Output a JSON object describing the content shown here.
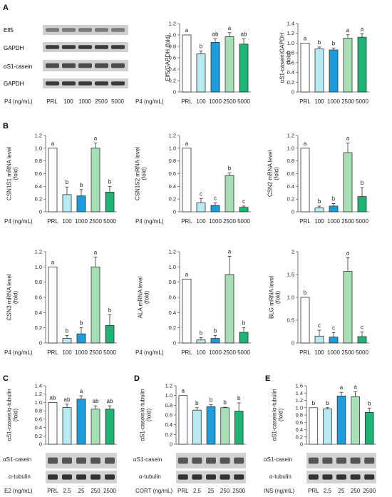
{
  "panel_labels": [
    "A",
    "B",
    "C",
    "D",
    "E"
  ],
  "colors": {
    "white": "#ffffff",
    "light_cyan": "#b8eaf2",
    "blue": "#1c9bdd",
    "light_green": "#a7dfb7",
    "green": "#1db574"
  },
  "blot_A": {
    "labels": [
      "Elf5",
      "GAPDH",
      "αS1-casein",
      "GAPDH"
    ]
  },
  "chart_data": [
    {
      "id": "A-elf5",
      "type": "bar",
      "ylabel": "Elf5/GAPDH (fold)",
      "xlabel": "P4 (ng/mL)",
      "categories": [
        "PRL",
        "100",
        "1000",
        "2500",
        "5000"
      ],
      "values": [
        1.0,
        0.67,
        0.87,
        0.97,
        0.84
      ],
      "errors": [
        0,
        0.05,
        0.06,
        0.07,
        0.09
      ],
      "letters": [
        "a",
        "b",
        "ab",
        "a",
        "ab"
      ],
      "ylim": [
        0,
        1.2
      ],
      "ticks": [
        "0",
        "0.2",
        "0.4",
        "0.6",
        "0.8",
        "1.0",
        "1.2"
      ]
    },
    {
      "id": "A-casein",
      "type": "bar",
      "ylabel": "αS1-casein/GAPDH (fold)",
      "xlabel": "",
      "categories": [
        "PRL",
        "100",
        "1000",
        "2500",
        "5000"
      ],
      "values": [
        1.0,
        0.88,
        0.86,
        1.1,
        1.12
      ],
      "errors": [
        0,
        0.04,
        0.04,
        0.07,
        0.07
      ],
      "letters": [
        "a",
        "b",
        "b",
        "a",
        "a"
      ],
      "ylim": [
        0,
        1.4
      ],
      "ticks": [
        "0",
        "0.2",
        "0.4",
        "0.6",
        "0.8",
        "1.0",
        "1.2",
        "1.4"
      ]
    },
    {
      "id": "B-csn1s1",
      "type": "bar",
      "ylabel": "CSN1S1 mRNA level (fold)",
      "xlabel": "P4 (ng/mL)",
      "categories": [
        "PRL",
        "100",
        "1000",
        "2500",
        "5000"
      ],
      "values": [
        1.0,
        0.27,
        0.25,
        1.0,
        0.31
      ],
      "errors": [
        0,
        0.12,
        0.1,
        0.08,
        0.09
      ],
      "letters": [
        "a",
        "b",
        "b",
        "a",
        "b"
      ],
      "ylim": [
        0,
        1.2
      ],
      "ticks": [
        "0",
        "0.1",
        "0.2",
        "0.3",
        "0.4",
        "0.5",
        "0.6",
        "0.7",
        "0.8",
        "0.9",
        "1.0",
        "1.1",
        "1.2"
      ],
      "tick_show": [
        0,
        2,
        4,
        6,
        8,
        10,
        12
      ]
    },
    {
      "id": "B-csn1s2",
      "type": "bar",
      "ylabel": "CSN1S2 mRNA level (fold)",
      "xlabel": "P4 (ng/mL)",
      "categories": [
        "PRL",
        "100",
        "1000",
        "2500",
        "5000"
      ],
      "values": [
        1.0,
        0.14,
        0.1,
        0.57,
        0.07
      ],
      "errors": [
        0,
        0.07,
        0.04,
        0.04,
        0.02
      ],
      "letters": [
        "a",
        "c",
        "c",
        "b",
        "c"
      ],
      "ylim": [
        0,
        1.2
      ],
      "ticks": [
        "0",
        "0.2",
        "0.4",
        "0.6",
        "0.8",
        "1.0",
        "1.2"
      ]
    },
    {
      "id": "B-csn2",
      "type": "bar",
      "ylabel": "CSN2 mRNA level (fold)",
      "xlabel": "",
      "categories": [
        "PRL",
        "100",
        "1000",
        "2500",
        "5000"
      ],
      "values": [
        1.0,
        0.06,
        0.09,
        0.93,
        0.24
      ],
      "errors": [
        0,
        0.03,
        0.04,
        0.15,
        0.14
      ],
      "letters": [
        "a",
        "b",
        "b",
        "a",
        "b"
      ],
      "ylim": [
        0,
        1.2
      ],
      "ticks": [
        "0",
        "0.2",
        "0.4",
        "0.6",
        "0.8",
        "1.0",
        "1.2"
      ]
    },
    {
      "id": "B-csn3",
      "type": "bar",
      "ylabel": "CSN3 mRNA level (fold)",
      "xlabel": "P4 (ng/mL)",
      "categories": [
        "PRL",
        "100",
        "1000",
        "2500",
        "5000"
      ],
      "values": [
        1.0,
        0.06,
        0.12,
        1.0,
        0.23
      ],
      "errors": [
        0,
        0.04,
        0.08,
        0.13,
        0.14
      ],
      "letters": [
        "a",
        "b",
        "b",
        "a",
        "b"
      ],
      "ylim": [
        0,
        1.2
      ],
      "ticks": [
        "0",
        "0.2",
        "0.4",
        "0.6",
        "0.8",
        "1.0",
        "1.2"
      ]
    },
    {
      "id": "B-ala",
      "type": "bar",
      "ylabel": "ALA mRNA level (fold)",
      "xlabel": "P4 (ng/mL)",
      "categories": [
        "PRL",
        "100",
        "1000",
        "2500",
        "5000"
      ],
      "values": [
        0.84,
        0.04,
        0.06,
        0.9,
        0.14
      ],
      "errors": [
        0,
        0.03,
        0.04,
        0.24,
        0.06
      ],
      "letters": [
        "a",
        "b",
        "b",
        "a",
        "b"
      ],
      "ylim": [
        0,
        1.2
      ],
      "ticks": [
        "0",
        "0.2",
        "0.4",
        "0.6",
        "0.8",
        "1.0",
        "1.2"
      ]
    },
    {
      "id": "B-blg",
      "type": "bar",
      "ylabel": "BLG mRNA level (fold)",
      "xlabel": "",
      "categories": [
        "PRL",
        "100",
        "1000",
        "2500",
        "5000"
      ],
      "values": [
        1.0,
        0.15,
        0.13,
        1.57,
        0.14
      ],
      "errors": [
        0,
        0.13,
        0.1,
        0.3,
        0.1
      ],
      "letters": [
        "b",
        "c",
        "c",
        "a",
        "c"
      ],
      "ylim": [
        0,
        2
      ],
      "ticks": [
        "0",
        "0.5",
        "1.0",
        "1.5",
        "2"
      ]
    },
    {
      "id": "C-e2",
      "type": "bar",
      "ylabel": "αS1-casein/α-tubulin (fold)",
      "xlabel": "E2 (ng/mL)",
      "categories": [
        "PRL",
        "2.5",
        "25",
        "250",
        "2500"
      ],
      "values": [
        1.0,
        0.88,
        1.08,
        0.84,
        0.84
      ],
      "errors": [
        0,
        0.08,
        0.08,
        0.08,
        0.08
      ],
      "letters": [
        "ab",
        "ab",
        "a",
        "ab",
        "ab"
      ],
      "ylim": [
        0,
        1.4
      ],
      "ticks": [
        "0",
        "0.2",
        "0.4",
        "0.6",
        "0.8",
        "1.0",
        "1.2",
        "1.4"
      ]
    },
    {
      "id": "D-cort",
      "type": "bar",
      "ylabel": "αS1-casein/α-tubulin (fold)",
      "xlabel": "CORT (ng/mL)",
      "categories": [
        "PRL",
        "2.5",
        "25",
        "250",
        "2500"
      ],
      "values": [
        1.0,
        0.7,
        0.77,
        0.75,
        0.68
      ],
      "errors": [
        0,
        0.05,
        0.04,
        0.01,
        0.17
      ],
      "letters": [
        "a",
        "b",
        "b",
        "b",
        "b"
      ],
      "ylim": [
        0,
        1.2
      ],
      "ticks": [
        "0",
        "0.2",
        "0.4",
        "0.6",
        "0.8",
        "1.0",
        "1.2"
      ]
    },
    {
      "id": "E-ins",
      "type": "bar",
      "ylabel": "αS1-casein/α-tubulin (fold)",
      "xlabel": "INS (ng/mL)",
      "categories": [
        "PRL",
        "2.5",
        "25",
        "250",
        "2500"
      ],
      "values": [
        1.0,
        0.97,
        1.32,
        1.3,
        0.87
      ],
      "errors": [
        0,
        0.03,
        0.1,
        0.14,
        0.12
      ],
      "letters": [
        "b",
        "b",
        "a",
        "a",
        "b"
      ],
      "ylim": [
        0,
        1.6
      ],
      "ticks": [
        "0",
        "0.2",
        "0.4",
        "0.6",
        "0.8",
        "1.0",
        "1.2",
        "1.4",
        "1.6"
      ]
    }
  ],
  "blot_bottom_labels": [
    "αS1-casein",
    "α-tubulin"
  ]
}
